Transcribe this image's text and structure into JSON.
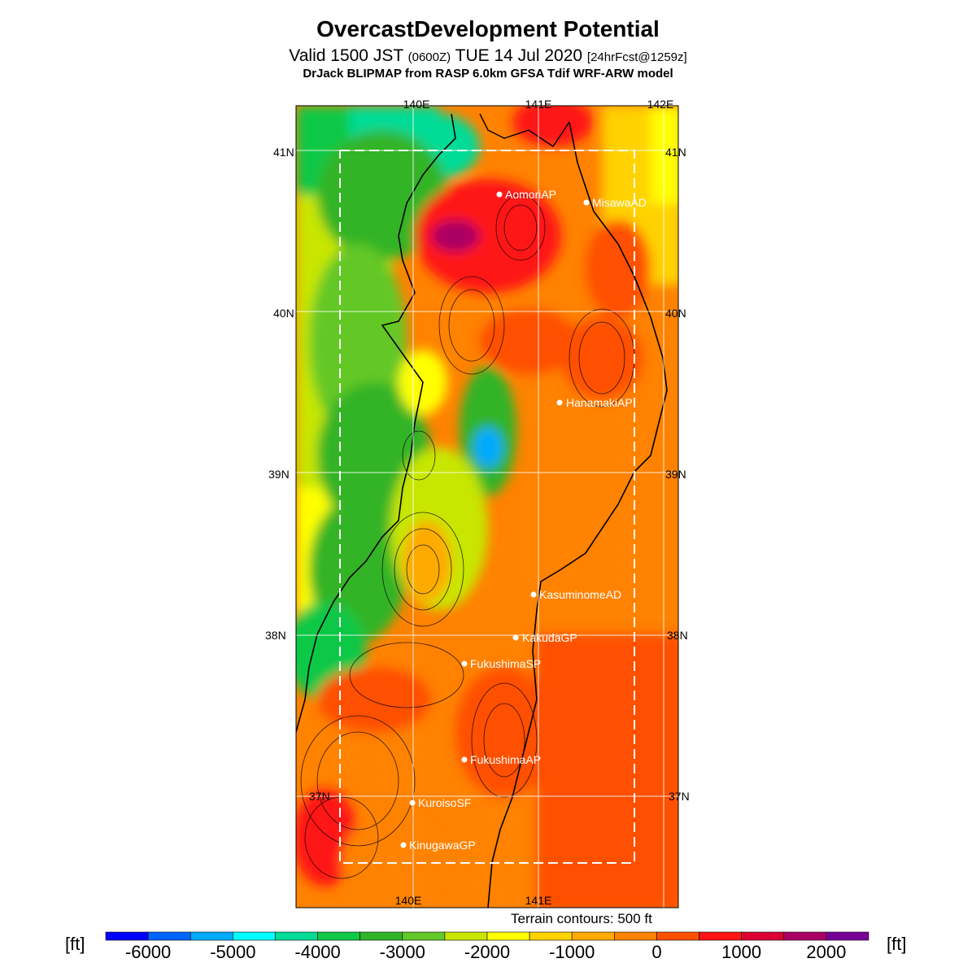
{
  "header": {
    "title": "OvercastDevelopment Potential",
    "valid_prefix": "Valid 1500 JST",
    "valid_utc": "(0600Z)",
    "valid_date": "TUE 14 Jul 2020",
    "forecast_info": "[24hrFcst@1259z]",
    "model_line": "DrJack BLIPMAP from RASP 6.0km GFSA Tdif WRF-ARW model"
  },
  "map": {
    "lon_labels_top": [
      "140E",
      "141E",
      "142E"
    ],
    "lon_labels_bottom": [
      "140E",
      "141E"
    ],
    "lat_labels_left": [
      "41N",
      "40N",
      "39N",
      "38N",
      "37N"
    ],
    "lat_labels_right": [
      "41N",
      "40N",
      "39N",
      "38N",
      "37N"
    ],
    "stations": [
      {
        "name": "AomoriAP"
      },
      {
        "name": "MisawaAD"
      },
      {
        "name": "HanamakiAP"
      },
      {
        "name": "KasuminomeAD"
      },
      {
        "name": "KakudaGP"
      },
      {
        "name": "FukushimaSP"
      },
      {
        "name": "FukushimaAP"
      },
      {
        "name": "KuroisoSF"
      },
      {
        "name": "KinugawaGP"
      }
    ],
    "terrain_note": "Terrain contours: 500 ft"
  },
  "colorbar": {
    "unit": "[ft]",
    "ticks": [
      "-6000",
      "-5000",
      "-4000",
      "-3000",
      "-2000",
      "-1000",
      "0",
      "1000",
      "2000"
    ],
    "colors": [
      "#0000ff",
      "#0064ff",
      "#00aaff",
      "#00ffff",
      "#00dc96",
      "#10c846",
      "#30b428",
      "#64c828",
      "#c8e600",
      "#ffff00",
      "#ffd200",
      "#ffaa00",
      "#ff8200",
      "#ff5000",
      "#ff1414",
      "#dc0032",
      "#aa0064",
      "#780096"
    ]
  }
}
